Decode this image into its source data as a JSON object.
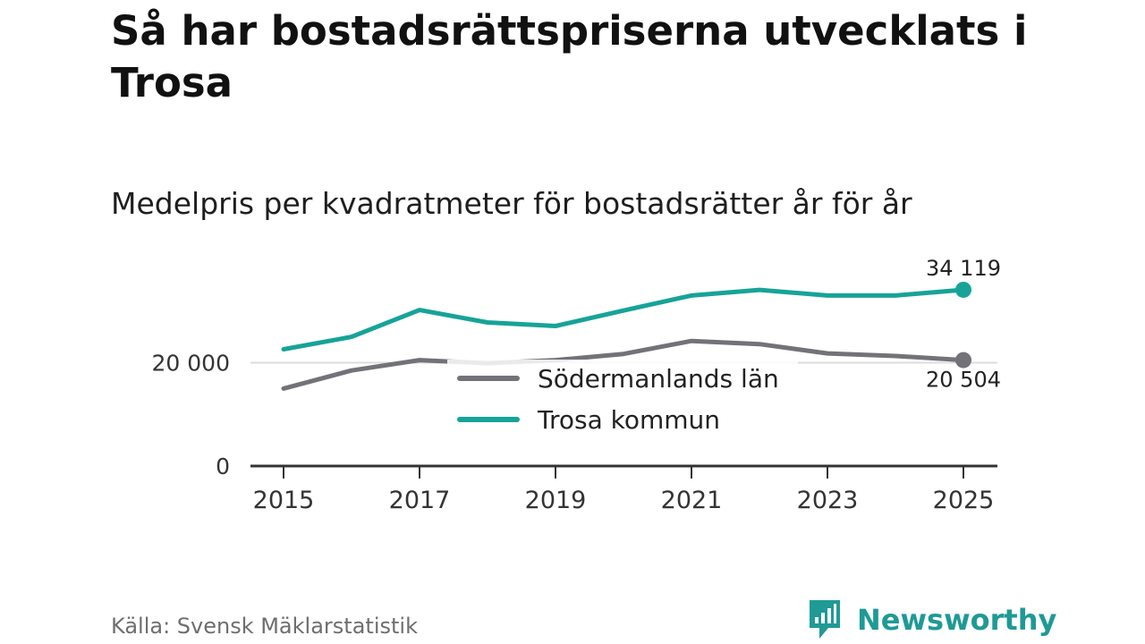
{
  "header": {
    "title": "Så har bostadsrättspriserna utvecklats i Trosa",
    "subtitle": "Medelpris per kvadratmeter för bostadsrätter år för år"
  },
  "footer": {
    "source": "Källa: Svensk Mäklarstatistik",
    "brand": "Newsworthy"
  },
  "colors": {
    "trosa": "#17a398",
    "lan": "#737279",
    "grid": "#dddddd",
    "axis": "#333333",
    "brand": "#1f9a95"
  },
  "chart_data": {
    "type": "line",
    "title": "Medelpris per kvadratmeter för bostadsrätter år för år",
    "xlabel": "",
    "ylabel": "",
    "x": [
      2015,
      2016,
      2017,
      2018,
      2019,
      2020,
      2021,
      2022,
      2023,
      2024,
      2025
    ],
    "xticks": [
      "2015",
      "2017",
      "2019",
      "2021",
      "2023",
      "2025"
    ],
    "yticks": [
      {
        "value": 0,
        "label": "0"
      },
      {
        "value": 20000,
        "label": "20 000"
      }
    ],
    "ylim": [
      0,
      40000
    ],
    "grid": true,
    "legend_position": "center",
    "series": [
      {
        "key": "lan",
        "name": "Södermanlands län",
        "values": [
          15000,
          18500,
          20500,
          19900,
          20500,
          21700,
          24200,
          23600,
          21800,
          21300,
          20504
        ],
        "end_label": "20 504"
      },
      {
        "key": "trosa",
        "name": "Trosa kommun",
        "values": [
          22600,
          25000,
          30200,
          27800,
          27100,
          30100,
          33000,
          34100,
          33000,
          33000,
          34119
        ],
        "end_label": "34 119"
      }
    ]
  }
}
